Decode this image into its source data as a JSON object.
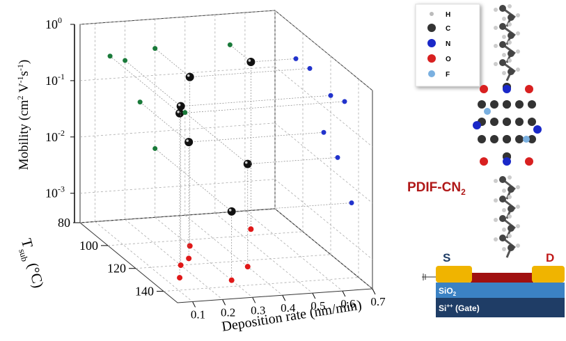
{
  "chart_data": {
    "type": "scatter3d",
    "x_label": "Deposition rate (nm/min)",
    "y_label": [
      "T",
      "sub",
      " (°C)"
    ],
    "z_label": [
      "Mobility (cm",
      "2",
      " V",
      "-1",
      "s",
      "-1",
      ")"
    ],
    "x": [
      0.15,
      0.2,
      0.3,
      0.25,
      0.4,
      0.3,
      0.55
    ],
    "y": [
      130,
      120,
      105,
      115,
      125,
      135,
      95
    ],
    "z": [
      0.25,
      0.2,
      0.3,
      0.035,
      0.02,
      0.005,
      0.28
    ],
    "color": "#111111",
    "projection_colors": {
      "back": "#1a7a3a",
      "side": "#2233cc",
      "floor": "#e01818"
    },
    "xlim": [
      0.05,
      0.7
    ],
    "ylim": [
      80,
      150
    ],
    "zlim": [
      0.0003,
      1
    ],
    "zscale": "log",
    "xticks": [
      0.1,
      0.2,
      0.3,
      0.4,
      0.5,
      0.6,
      0.7
    ],
    "yticks": [
      80,
      100,
      120,
      140
    ],
    "zticks": [
      {
        "value": 1,
        "label": "10",
        "exponent": "0"
      },
      {
        "value": 0.1,
        "label": "10",
        "exponent": "-1"
      },
      {
        "value": 0.01,
        "label": "10",
        "exponent": "-2"
      },
      {
        "value": 0.001,
        "label": "10",
        "exponent": "-3"
      }
    ],
    "grid": true
  },
  "legend_atoms": [
    "H",
    "C",
    "N",
    "O",
    "F"
  ],
  "molecule": [
    "PDIF-CN",
    "2"
  ],
  "device": {
    "source": "S",
    "drain": "D",
    "oxide": [
      "SiO",
      "2"
    ],
    "gate": [
      "Si",
      "++",
      " (Gate)"
    ]
  }
}
